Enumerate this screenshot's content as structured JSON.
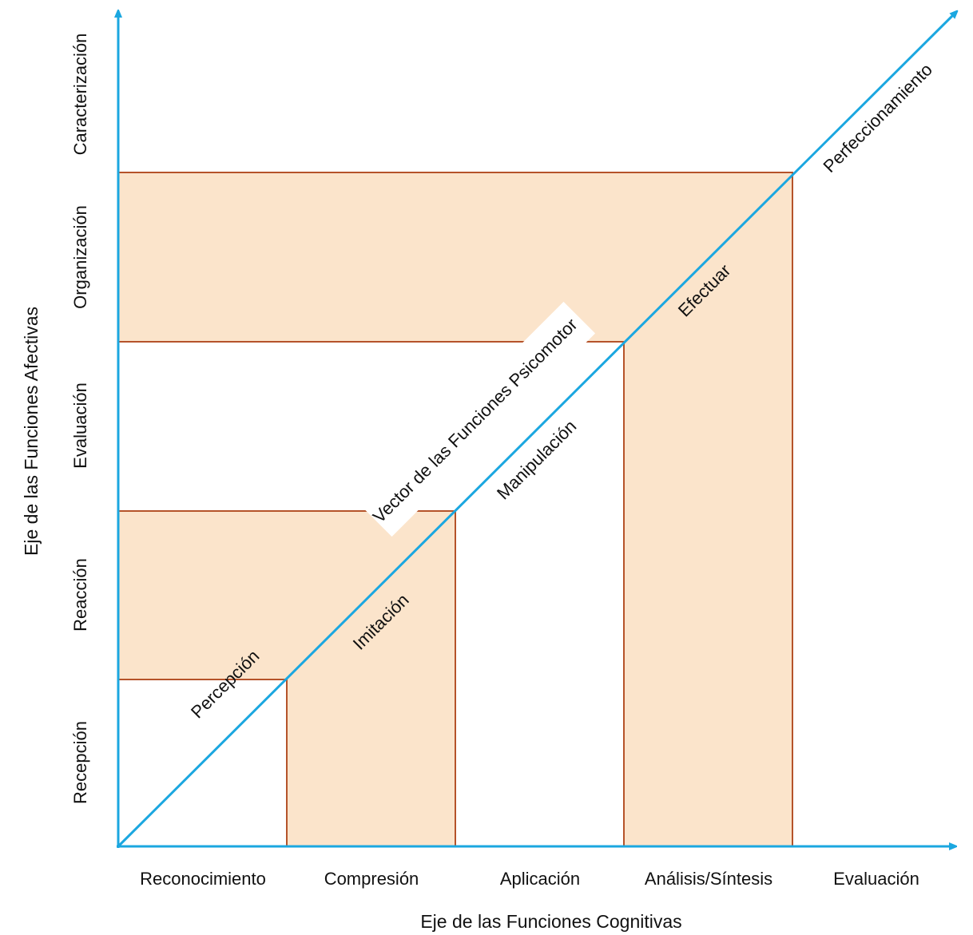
{
  "colors": {
    "axis": "#1ba7e0",
    "band_fill": "#fbe4cb",
    "band_stroke": "#b5532a",
    "text": "#111111",
    "callout_bg": "#ffffff"
  },
  "x_axis": {
    "title": "Eje de las Funciones Cognitivas",
    "categories": [
      "Reconocimiento",
      "Compresión",
      "Aplicación",
      "Análisis/Síntesis",
      "Evaluación"
    ]
  },
  "y_axis": {
    "title": "Eje de las Funciones Afectivas",
    "categories": [
      "Recepción",
      "Reacción",
      "Evaluación",
      "Organización",
      "Caracterización"
    ]
  },
  "diagonal": {
    "title": "Vector  de las Funciones Psicomotor",
    "stages": [
      "Percepción",
      "Imitación",
      "Manipulación",
      "Efectuar",
      "Perfeccionamiento"
    ]
  }
}
